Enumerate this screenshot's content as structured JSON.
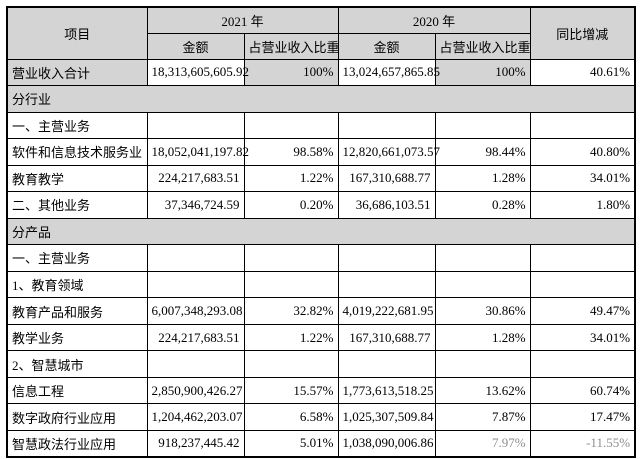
{
  "table": {
    "header": {
      "item_label": "项目",
      "year_2021_label": "2021 年",
      "year_2020_label": "2020 年",
      "yoy_label": "同比增减",
      "amount_label_2021": "金额",
      "proportion_label_2021": "占营业收入比重",
      "amount_label_2020": "金额",
      "proportion_label_2020": "占营业收入比重"
    },
    "rows": [
      {
        "type": "data",
        "label": "营业收入合计",
        "a2021": "18,313,605,605.92",
        "p2021": "100%",
        "a2020": "13,024,657,865.85",
        "p2020": "100%",
        "yoy": "40.61%",
        "shaded_cells": [
          "label",
          "p2021",
          "p2020"
        ]
      },
      {
        "type": "section",
        "label": "分行业"
      },
      {
        "type": "subheader",
        "label": "一、主营业务"
      },
      {
        "type": "data",
        "label": "软件和信息技术服务业",
        "a2021": "18,052,041,197.82",
        "p2021": "98.58%",
        "a2020": "12,820,661,073.57",
        "p2020": "98.44%",
        "yoy": "40.80%"
      },
      {
        "type": "data",
        "label": "教育教学",
        "a2021": "224,217,683.51",
        "p2021": "1.22%",
        "a2020": "167,310,688.77",
        "p2020": "1.28%",
        "yoy": "34.01%"
      },
      {
        "type": "data",
        "label": "二、其他业务",
        "a2021": "37,346,724.59",
        "p2021": "0.20%",
        "a2020": "36,686,103.51",
        "p2020": "0.28%",
        "yoy": "1.80%"
      },
      {
        "type": "section",
        "label": "分产品"
      },
      {
        "type": "subheader",
        "label": "一、主营业务"
      },
      {
        "type": "subheader",
        "label": "1、教育领域"
      },
      {
        "type": "data",
        "label": "教育产品和服务",
        "a2021": "6,007,348,293.08",
        "p2021": "32.82%",
        "a2020": "4,019,222,681.95",
        "p2020": "30.86%",
        "yoy": "49.47%"
      },
      {
        "type": "data",
        "label": "教学业务",
        "a2021": "224,217,683.51",
        "p2021": "1.22%",
        "a2020": "167,310,688.77",
        "p2020": "1.28%",
        "yoy": "34.01%"
      },
      {
        "type": "subheader",
        "label": "2、智慧城市"
      },
      {
        "type": "data",
        "label": "信息工程",
        "a2021": "2,850,900,426.27",
        "p2021": "15.57%",
        "a2020": "1,773,613,518.25",
        "p2020": "13.62%",
        "yoy": "60.74%"
      },
      {
        "type": "data",
        "label": "数字政府行业应用",
        "a2021": "1,204,462,203.07",
        "p2021": "6.58%",
        "a2020": "1,025,307,509.84",
        "p2020": "7.87%",
        "yoy": "17.47%"
      },
      {
        "type": "data",
        "label": "智慧政法行业应用",
        "a2021": "918,237,445.42",
        "p2021": "5.01%",
        "a2020": "1,038,090,006.86",
        "p2020": "7.97%",
        "yoy": "-11.55%",
        "faded_cells": [
          "p2020",
          "yoy"
        ]
      }
    ]
  },
  "colors": {
    "header_fill": "#d4d4d4",
    "border": "#000000",
    "text": "#000000",
    "faded_text": "#8e8e8e",
    "page_background": "#ffffff"
  }
}
